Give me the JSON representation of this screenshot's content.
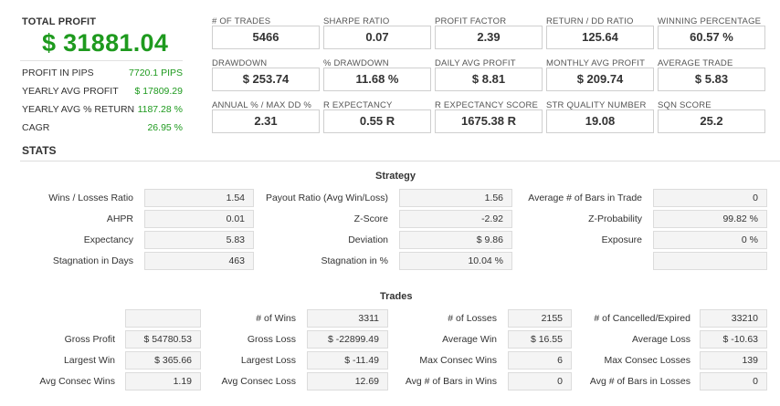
{
  "summary": {
    "total_profit_label": "TOTAL PROFIT",
    "total_profit_value": "$ 31881.04",
    "rows": [
      {
        "label": "PROFIT IN PIPS",
        "value": "7720.1 PIPS"
      },
      {
        "label": "YEARLY AVG PROFIT",
        "value": "$ 17809.29"
      },
      {
        "label": "YEARLY AVG % RETURN",
        "value": "1187.28 %"
      },
      {
        "label": "CAGR",
        "value": "26.95 %"
      }
    ]
  },
  "metrics": [
    {
      "label": "# OF TRADES",
      "value": "5466"
    },
    {
      "label": "SHARPE RATIO",
      "value": "0.07"
    },
    {
      "label": "PROFIT FACTOR",
      "value": "2.39"
    },
    {
      "label": "RETURN / DD RATIO",
      "value": "125.64"
    },
    {
      "label": "WINNING PERCENTAGE",
      "value": "60.57 %"
    },
    {
      "label": "DRAWDOWN",
      "value": "$ 253.74"
    },
    {
      "label": "% DRAWDOWN",
      "value": "11.68 %"
    },
    {
      "label": "DAILY AVG PROFIT",
      "value": "$ 8.81"
    },
    {
      "label": "MONTHLY AVG PROFIT",
      "value": "$ 209.74"
    },
    {
      "label": "AVERAGE TRADE",
      "value": "$ 5.83"
    },
    {
      "label": "ANNUAL % / MAX DD %",
      "value": "2.31"
    },
    {
      "label": "R EXPECTANCY",
      "value": "0.55 R"
    },
    {
      "label": "R EXPECTANCY SCORE",
      "value": "1675.38 R"
    },
    {
      "label": "STR QUALITY NUMBER",
      "value": "19.08"
    },
    {
      "label": "SQN SCORE",
      "value": "25.2"
    }
  ],
  "stats_title": "STATS",
  "strategy": {
    "title": "Strategy",
    "rows": [
      [
        {
          "label": "Wins / Losses Ratio",
          "value": "1.54"
        },
        {
          "label": "Payout Ratio (Avg Win/Loss)",
          "value": "1.56"
        },
        {
          "label": "Average # of Bars in Trade",
          "value": "0"
        }
      ],
      [
        {
          "label": "AHPR",
          "value": "0.01"
        },
        {
          "label": "Z-Score",
          "value": "-2.92"
        },
        {
          "label": "Z-Probability",
          "value": "99.82 %"
        }
      ],
      [
        {
          "label": "Expectancy",
          "value": "5.83"
        },
        {
          "label": "Deviation",
          "value": "$ 9.86"
        },
        {
          "label": "Exposure",
          "value": "0 %"
        }
      ],
      [
        {
          "label": "Stagnation in Days",
          "value": "463"
        },
        {
          "label": "Stagnation in %",
          "value": "10.04 %"
        },
        {
          "label": "",
          "value": ""
        }
      ]
    ]
  },
  "trades": {
    "title": "Trades",
    "rows": [
      [
        {
          "label": "",
          "value": ""
        },
        {
          "label": "# of Wins",
          "value": "3311"
        },
        {
          "label": "# of Losses",
          "value": "2155"
        },
        {
          "label": "# of Cancelled/Expired",
          "value": "33210"
        }
      ],
      [
        {
          "label": "Gross Profit",
          "value": "$ 54780.53"
        },
        {
          "label": "Gross Loss",
          "value": "$ -22899.49"
        },
        {
          "label": "Average Win",
          "value": "$ 16.55"
        },
        {
          "label": "Average Loss",
          "value": "$ -10.63"
        }
      ],
      [
        {
          "label": "Largest Win",
          "value": "$ 365.66"
        },
        {
          "label": "Largest Loss",
          "value": "$ -11.49"
        },
        {
          "label": "Max Consec Wins",
          "value": "6"
        },
        {
          "label": "Max Consec Losses",
          "value": "139"
        }
      ],
      [
        {
          "label": "Avg Consec Wins",
          "value": "1.19"
        },
        {
          "label": "Avg Consec Loss",
          "value": "12.69"
        },
        {
          "label": "Avg # of Bars in Wins",
          "value": "0"
        },
        {
          "label": "Avg # of Bars in Losses",
          "value": "0"
        }
      ]
    ]
  }
}
